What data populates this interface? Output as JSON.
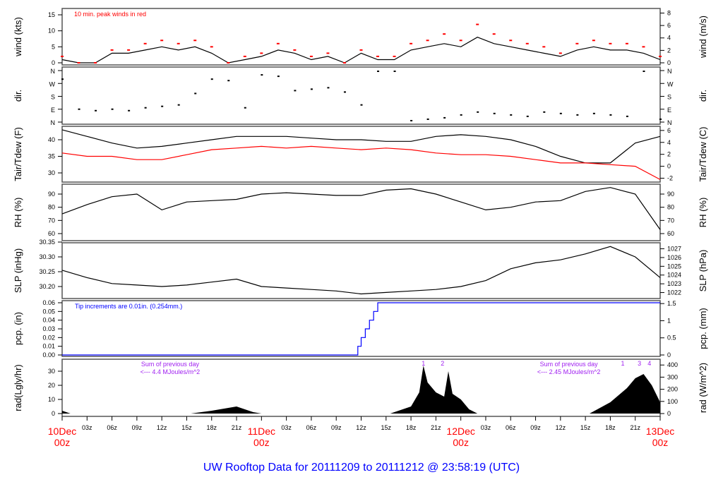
{
  "title": "UW Rooftop Data for 20111209  to  20111212 @ 23:58:19  (UTC)",
  "colors": {
    "title": "#0000ff",
    "day_label": "#ff0000",
    "peak": "#ff0000",
    "tdew": "#ff0000",
    "pcp": "#0000ff",
    "rad_note": "#a020f0",
    "line": "#000000"
  },
  "x_axis": {
    "hours_total": 72,
    "tick_hour_labels": [
      "03z",
      "06z",
      "09z",
      "12z",
      "15z",
      "18z",
      "21z"
    ],
    "day_labels": [
      {
        "hour": 0,
        "date": "10Dec",
        "time": "00z"
      },
      {
        "hour": 24,
        "date": "11Dec",
        "time": "00z"
      },
      {
        "hour": 48,
        "date": "12Dec",
        "time": "00z"
      },
      {
        "hour": 72,
        "date": "13Dec",
        "time": "00z"
      }
    ]
  },
  "chart_data": [
    {
      "id": "wind",
      "type": "line",
      "ylabel": "wind (kts)",
      "ylabel_right": "wind (m/s)",
      "yticks": [
        0,
        5,
        10,
        15
      ],
      "yticks_right": [
        0,
        2,
        4,
        6,
        8
      ],
      "annotation": "10 min. peak winds in red",
      "x": [
        0,
        2,
        4,
        6,
        8,
        10,
        12,
        14,
        16,
        18,
        20,
        22,
        24,
        26,
        28,
        30,
        32,
        34,
        36,
        38,
        40,
        42,
        44,
        46,
        48,
        50,
        52,
        54,
        56,
        58,
        60,
        62,
        64,
        66,
        68,
        70,
        72
      ],
      "series": [
        {
          "values": [
            1,
            0,
            0,
            3,
            3,
            4,
            5,
            4,
            5,
            3,
            0,
            1,
            2,
            4,
            3,
            1,
            2,
            0,
            3,
            1,
            1,
            4,
            5,
            6,
            5,
            8,
            6,
            5,
            4,
            3,
            2,
            4,
            5,
            4,
            4,
            3,
            1
          ]
        },
        {
          "values": [
            2,
            0,
            0,
            4,
            4,
            6,
            7,
            6,
            7,
            5,
            0,
            2,
            3,
            6,
            4,
            2,
            3,
            0,
            4,
            2,
            2,
            6,
            7,
            9,
            7,
            12,
            9,
            7,
            6,
            5,
            3,
            6,
            7,
            6,
            6,
            5,
            2
          ],
          "peak": true
        }
      ]
    },
    {
      "id": "dir",
      "type": "scatter",
      "ylabel": "dir.",
      "ylabel_right": "dir.",
      "ytick_labels": [
        "N",
        "E",
        "S",
        "W",
        "N"
      ],
      "x": [
        0,
        2,
        4,
        6,
        8,
        10,
        12,
        14,
        16,
        18,
        20,
        22,
        24,
        26,
        28,
        30,
        32,
        34,
        36,
        38,
        40,
        42,
        44,
        46,
        48,
        50,
        52,
        54,
        56,
        58,
        60,
        62,
        64,
        66,
        68,
        70,
        72
      ],
      "values": [
        300,
        90,
        80,
        90,
        80,
        100,
        110,
        120,
        200,
        300,
        290,
        100,
        330,
        320,
        220,
        230,
        240,
        210,
        120,
        355,
        355,
        10,
        20,
        30,
        50,
        70,
        60,
        50,
        40,
        70,
        60,
        50,
        60,
        50,
        40,
        355,
        20
      ]
    },
    {
      "id": "temp",
      "type": "line",
      "ylabel": "Tair/Tdew (F)",
      "ylabel_right": "Tair/Tdew (C)",
      "yticks": [
        30,
        35,
        40
      ],
      "yticks_right": [
        -2,
        0,
        2,
        4,
        6
      ],
      "x": [
        0,
        3,
        6,
        9,
        12,
        15,
        18,
        21,
        24,
        27,
        30,
        33,
        36,
        39,
        42,
        45,
        48,
        51,
        54,
        57,
        60,
        63,
        66,
        69,
        72
      ],
      "series": [
        {
          "name": "Tair",
          "values": [
            43,
            41,
            39,
            37.5,
            38,
            39,
            40,
            41,
            41,
            41,
            40.5,
            40,
            40,
            39.5,
            39.5,
            41,
            41.5,
            41,
            40,
            38,
            35,
            33,
            33,
            39,
            41
          ]
        },
        {
          "name": "Tdew",
          "values": [
            36,
            35,
            35,
            34,
            34,
            35.5,
            37,
            37.5,
            38,
            37.5,
            38,
            37.5,
            37,
            37.5,
            37,
            36,
            35.5,
            35.5,
            35,
            34,
            33,
            33,
            32.5,
            32,
            28
          ]
        }
      ]
    },
    {
      "id": "rh",
      "type": "line",
      "ylabel": "RH (%)",
      "ylabel_right": "RH (%)",
      "yticks": [
        60,
        70,
        80,
        90
      ],
      "yticks_right": [
        60,
        70,
        80,
        90
      ],
      "x": [
        0,
        3,
        6,
        9,
        12,
        15,
        18,
        21,
        24,
        27,
        30,
        33,
        36,
        39,
        42,
        45,
        48,
        51,
        54,
        57,
        60,
        63,
        66,
        69,
        72
      ],
      "values": [
        75,
        82,
        88,
        90,
        78,
        84,
        85,
        86,
        90,
        91,
        90,
        89,
        89,
        93,
        94,
        90,
        84,
        78,
        80,
        84,
        85,
        92,
        95,
        90,
        63
      ]
    },
    {
      "id": "slp",
      "type": "line",
      "ylabel": "SLP (inHg)",
      "ylabel_right": "SLP (hPa)",
      "yticks": [
        30.2,
        30.25,
        30.3,
        30.35
      ],
      "yticks_right": [
        1022,
        1023,
        1024,
        1025,
        1026,
        1027
      ],
      "x": [
        0,
        3,
        6,
        9,
        12,
        15,
        18,
        21,
        24,
        27,
        30,
        33,
        36,
        39,
        42,
        45,
        48,
        51,
        54,
        57,
        60,
        63,
        66,
        69,
        72
      ],
      "values": [
        30.255,
        30.23,
        30.21,
        30.205,
        30.2,
        30.205,
        30.215,
        30.225,
        30.2,
        30.195,
        30.19,
        30.185,
        30.175,
        30.18,
        30.185,
        30.19,
        30.2,
        30.22,
        30.26,
        30.28,
        30.29,
        30.31,
        30.335,
        30.3,
        30.23
      ]
    },
    {
      "id": "pcp",
      "type": "step",
      "ylabel": "pcp. (in)",
      "ylabel_right": "pcp. (mm)",
      "yticks": [
        0,
        0.01,
        0.02,
        0.03,
        0.04,
        0.05,
        0.06
      ],
      "yticks_right": [
        0,
        0.5,
        1,
        1.5
      ],
      "annotation": "Tip increments are 0.01in. (0.254mm.)",
      "x": [
        0,
        35.6,
        36,
        36.5,
        37,
        37.5,
        38,
        72
      ],
      "values": [
        0,
        0.01,
        0.02,
        0.03,
        0.04,
        0.05,
        0.06,
        0.06
      ]
    },
    {
      "id": "rad",
      "type": "area",
      "ylabel": "rad(Lgly/hr)",
      "ylabel_right": "rad (W/m^2)",
      "yticks": [
        0,
        10,
        20,
        30
      ],
      "yticks_right": [
        0,
        100,
        200,
        300,
        400
      ],
      "notes": [
        {
          "hour": 13,
          "line1": "Sum of previous day",
          "line2": "<--- 4.4 MJoules/m^2"
        },
        {
          "hour": 61,
          "line1": "Sum of previous day",
          "line2": "<--- 2.45 MJoules/m^2"
        }
      ],
      "markers": [
        {
          "hour": 43.5,
          "label": "1"
        },
        {
          "hour": 45.8,
          "label": "2"
        },
        {
          "hour": 67.5,
          "label": "1"
        },
        {
          "hour": 69.5,
          "label": "3"
        },
        {
          "hour": 70.7,
          "label": "4"
        }
      ],
      "x": [
        0,
        1,
        2,
        15.5,
        18,
        20,
        21,
        22,
        23,
        24,
        39.5,
        42,
        43,
        43.5,
        44,
        45,
        46,
        46.5,
        47,
        48,
        49,
        50,
        63.5,
        66,
        68,
        69,
        70,
        71,
        72
      ],
      "values": [
        2,
        0,
        0,
        0,
        2,
        4,
        5,
        3,
        1,
        0,
        0,
        5,
        15,
        34,
        22,
        15,
        12,
        30,
        14,
        10,
        3,
        0,
        0,
        8,
        18,
        25,
        28,
        20,
        8
      ]
    }
  ]
}
